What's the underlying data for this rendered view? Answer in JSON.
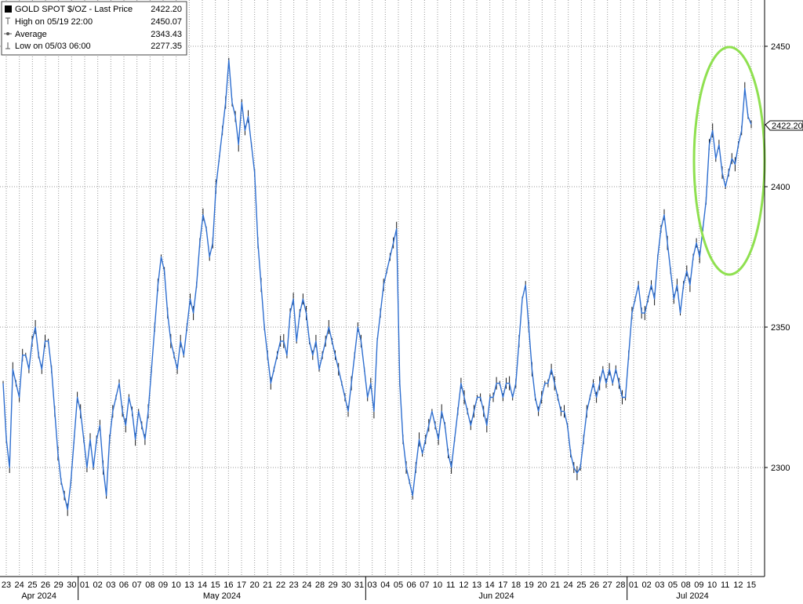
{
  "legend": {
    "title": "GOLD SPOT $/OZ - Last Price",
    "title_value": "2422.20",
    "rows": [
      {
        "label": "High on 05/19 22:00",
        "value": "2450.07",
        "icon": "high-marker-icon"
      },
      {
        "label": "Average",
        "value": "2343.43",
        "icon": "average-marker-icon"
      },
      {
        "label": "Low on 05/03 06:00",
        "value": "2277.35",
        "icon": "low-marker-icon"
      }
    ]
  },
  "last_price_label": "2422.20",
  "colors": {
    "price_dark": "#1a1a1a",
    "price_blue": "#2f6fd0",
    "highlight_ellipse": "#8fe050",
    "grid": "#9a9a9a"
  },
  "chart_data": {
    "type": "line",
    "title": "GOLD SPOT $/OZ",
    "ylim": [
      2265,
      2465
    ],
    "yticks": [
      2300,
      2350,
      2400,
      2450
    ],
    "grid": true,
    "legend_position": "top-left",
    "x_day_labels": [
      "23",
      "24",
      "25",
      "26",
      "29",
      "30",
      "01",
      "02",
      "03",
      "06",
      "07",
      "08",
      "09",
      "10",
      "13",
      "14",
      "15",
      "16",
      "17",
      "20",
      "21",
      "22",
      "23",
      "24",
      "28",
      "29",
      "30",
      "31",
      "03",
      "04",
      "05",
      "06",
      "07",
      "10",
      "11",
      "12",
      "13",
      "14",
      "17",
      "18",
      "19",
      "20",
      "21",
      "24",
      "25",
      "26",
      "27",
      "28",
      "01",
      "02",
      "03",
      "05",
      "08",
      "09",
      "10",
      "11",
      "12",
      "15"
    ],
    "months": [
      {
        "label": "Apr 2024",
        "start_index": 0
      },
      {
        "label": "May 2024",
        "start_index": 6
      },
      {
        "label": "Jun 2024",
        "start_index": 28
      },
      {
        "label": "Jul 2024",
        "start_index": 48
      }
    ],
    "series": [
      {
        "values": [
          2330,
          2310,
          2300,
          2335,
          2330,
          2325,
          2340,
          2340,
          2335,
          2345,
          2350,
          2340,
          2335,
          2345,
          2345,
          2335,
          2320,
          2305,
          2295,
          2290,
          2285,
          2295,
          2310,
          2325,
          2320,
          2310,
          2300,
          2310,
          2300,
          2310,
          2315,
          2300,
          2290,
          2310,
          2320,
          2325,
          2330,
          2320,
          2315,
          2325,
          2320,
          2310,
          2320,
          2315,
          2310,
          2320,
          2335,
          2350,
          2365,
          2375,
          2370,
          2355,
          2345,
          2340,
          2335,
          2345,
          2340,
          2350,
          2360,
          2355,
          2365,
          2380,
          2390,
          2385,
          2375,
          2380,
          2400,
          2410,
          2420,
          2430,
          2445,
          2430,
          2425,
          2415,
          2430,
          2420,
          2425,
          2415,
          2405,
          2380,
          2365,
          2350,
          2340,
          2330,
          2335,
          2340,
          2345,
          2345,
          2340,
          2355,
          2360,
          2345,
          2355,
          2360,
          2355,
          2345,
          2340,
          2345,
          2335,
          2340,
          2345,
          2350,
          2345,
          2340,
          2335,
          2330,
          2325,
          2320,
          2330,
          2340,
          2350,
          2345,
          2335,
          2325,
          2330,
          2320,
          2345,
          2355,
          2365,
          2370,
          2375,
          2380,
          2385,
          2330,
          2310,
          2300,
          2295,
          2290,
          2300,
          2310,
          2305,
          2310,
          2315,
          2320,
          2315,
          2310,
          2320,
          2315,
          2305,
          2300,
          2310,
          2320,
          2330,
          2325,
          2320,
          2315,
          2320,
          2325,
          2325,
          2320,
          2315,
          2325,
          2325,
          2330,
          2330,
          2325,
          2330,
          2330,
          2325,
          2330,
          2345,
          2360,
          2365,
          2350,
          2335,
          2325,
          2320,
          2325,
          2330,
          2330,
          2335,
          2330,
          2325,
          2320,
          2320,
          2315,
          2305,
          2300,
          2298,
          2300,
          2310,
          2320,
          2325,
          2330,
          2325,
          2330,
          2335,
          2330,
          2335,
          2330,
          2335,
          2330,
          2325,
          2325,
          2340,
          2355,
          2360,
          2365,
          2355,
          2355,
          2360,
          2365,
          2360,
          2375,
          2385,
          2390,
          2380,
          2370,
          2360,
          2365,
          2355,
          2365,
          2370,
          2365,
          2375,
          2380,
          2375,
          2385,
          2395,
          2415,
          2420,
          2410,
          2415,
          2405,
          2400,
          2405,
          2410,
          2408,
          2415,
          2420,
          2435,
          2425,
          2422.2
        ]
      }
    ]
  }
}
